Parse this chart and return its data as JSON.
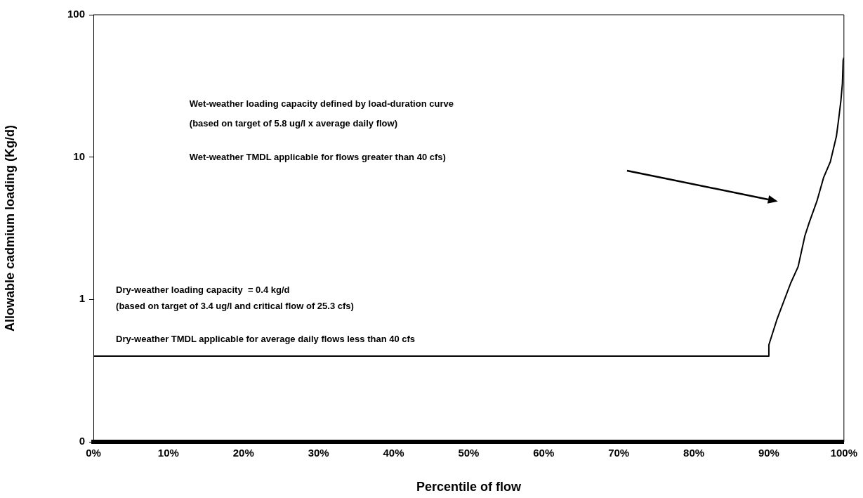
{
  "chart_data": {
    "type": "line",
    "xlabel": "Percentile of flow",
    "ylabel": "Allowable cadmium loading (Kg/d)",
    "series": [
      {
        "color": "#000000",
        "x": [
          0,
          90,
          90,
          91.1,
          92.9,
          93.9,
          94.8,
          95.4,
          96.4,
          97.3,
          98.2,
          99.0,
          99.3,
          99.6,
          99.8,
          99.9,
          100
        ],
        "values": [
          0.4,
          0.4,
          0.48,
          0.73,
          1.3,
          1.7,
          2.8,
          3.5,
          4.9,
          7.2,
          9.3,
          14,
          18.5,
          25,
          33,
          48,
          50
        ]
      }
    ],
    "xlim": [
      0,
      100
    ],
    "xticks": [
      {
        "value": 0,
        "label": "0%"
      },
      {
        "value": 10,
        "label": "10%"
      },
      {
        "value": 20,
        "label": "20%"
      },
      {
        "value": 30,
        "label": "30%"
      },
      {
        "value": 40,
        "label": "40%"
      },
      {
        "value": 50,
        "label": "50%"
      },
      {
        "value": 60,
        "label": "60%"
      },
      {
        "value": 70,
        "label": "70%"
      },
      {
        "value": 80,
        "label": "80%"
      },
      {
        "value": 90,
        "label": "90%"
      },
      {
        "value": 100,
        "label": "100%"
      }
    ],
    "ylim": [
      0.1,
      100
    ],
    "yticks": [
      {
        "value": 0.1,
        "label": "0"
      },
      1,
      10,
      100
    ],
    "log": true,
    "grid": false,
    "legend": false,
    "marker": "none",
    "line_style": "solid",
    "annotations": [
      "Wet-weather loading capacity defined by load-duration curve",
      "(based on target of 5.8 ug/l x average daily flow)",
      "Wet-weather TMDL applicable for flows greater than 40 cfs)",
      "Dry-weather loading capacity  = 0.4 kg/d",
      "(based on target of 3.4 ug/l and critical flow of 25.3 cfs)",
      "Dry-weather TMDL applicable for average daily flows less than 40 cfs"
    ]
  }
}
